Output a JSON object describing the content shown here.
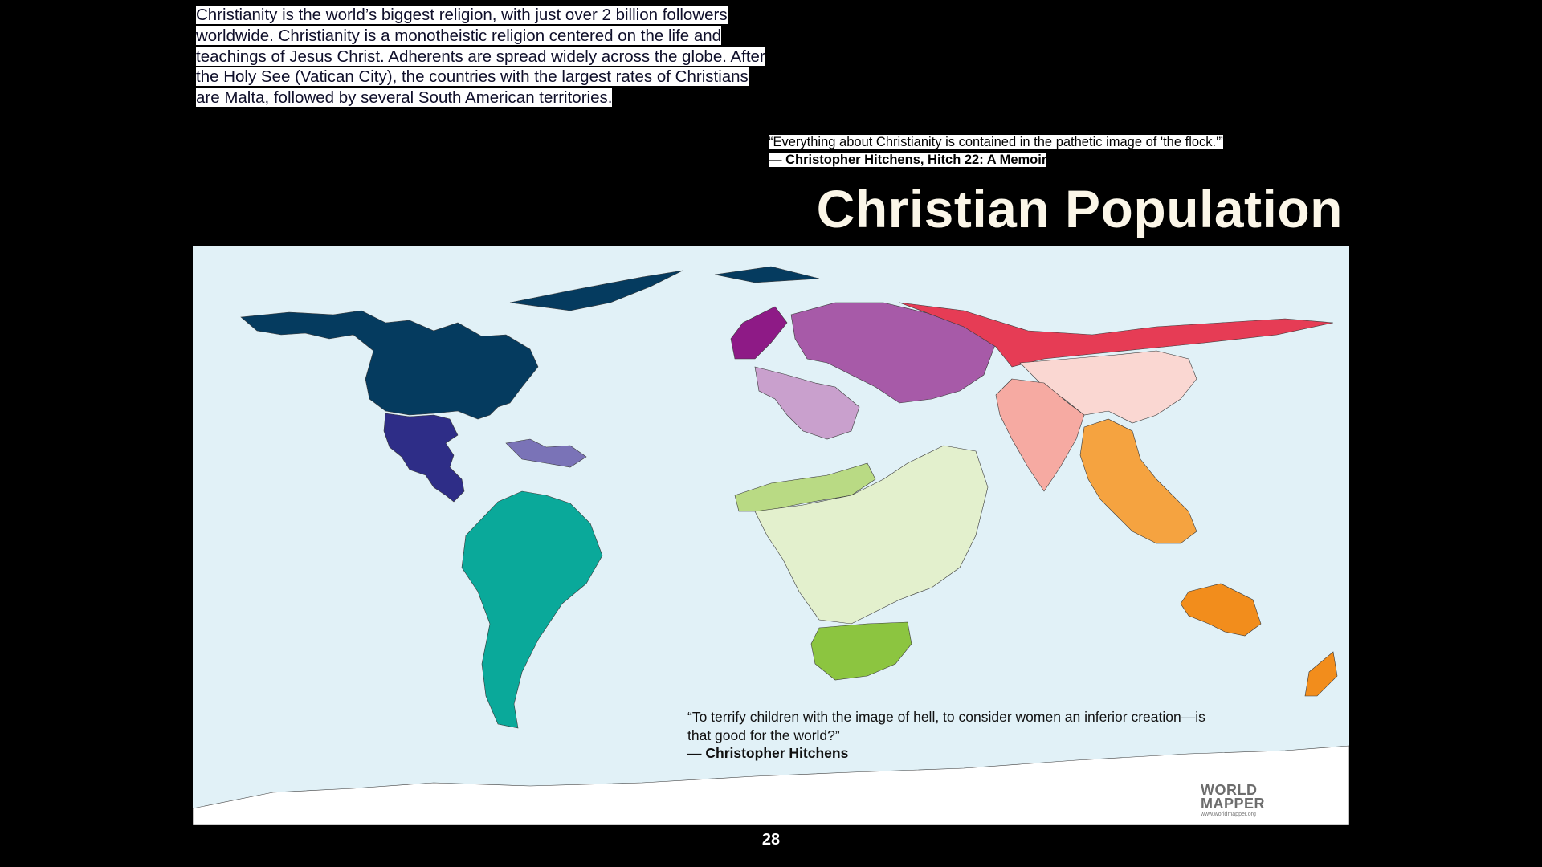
{
  "intro": {
    "lines": [
      "Christianity is the world’s biggest religion, with just over 2 billion followers",
      "worldwide. Christianity is a monotheistic religion centered on the life and",
      "teachings of Jesus Christ. Adherents are spread widely across the globe. After",
      "the Holy See (Vatican City), the countries with the largest rates of Christians",
      "are Malta, followed by several South American territories."
    ]
  },
  "quote_top": {
    "text": "“Everything about Christianity is contained in the pathetic image of 'the flock.'”",
    "dash": "— ",
    "author": "Christopher Hitchens, ",
    "book": "Hitch 22: A Memoir"
  },
  "title": "Christian Population",
  "map": {
    "colors": {
      "ocean": "#e1f1f7",
      "north_america": "#053b5f",
      "central_america": "#2e2d87",
      "caribbean": "#7a73b7",
      "south_america": "#0aa99a",
      "western_europe": "#8e1a86",
      "eastern_europe": "#a75aa8",
      "southern_europe": "#c9a0cd",
      "russia": "#e63c55",
      "east_asia": "#fad7d2",
      "south_asia": "#f6aaa2",
      "north_africa": "#b9da84",
      "africa": "#e3f0cd",
      "southern_africa": "#8cc540",
      "southeast_asia": "#f5a340",
      "oceania": "#f28d1c",
      "antarctica": "#ffffff"
    }
  },
  "quote_bottom": {
    "line1": "“To terrify children with the image of hell, to consider women an inferior creation—is",
    "line2": "that good for the world?”",
    "dash": "— ",
    "author": "Christopher Hitchens"
  },
  "logo": {
    "line1": "WORLD",
    "line2": "MAPPER",
    "url": "www.worldmapper.org"
  },
  "page_number": "28"
}
